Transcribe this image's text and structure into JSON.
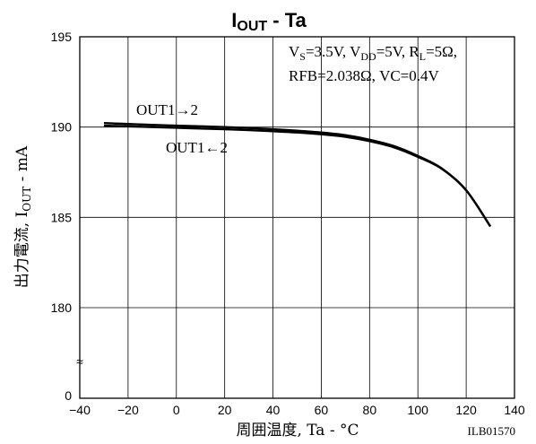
{
  "chart_data": {
    "type": "line",
    "title_main": "I",
    "title_sub": "OUT",
    "title_rest": " - Ta",
    "xlabel": "周囲温度, Ta - °C",
    "ylabel_prefix": "出力電流, I",
    "ylabel_sub": "OUT",
    "ylabel_suffix": " - mA",
    "xlim": [
      -40,
      140
    ],
    "ylim_display": [
      178,
      195
    ],
    "x_ticks": [
      "−40",
      "−20",
      "0",
      "20",
      "40",
      "60",
      "80",
      "100",
      "120",
      "140"
    ],
    "x_tick_values": [
      -40,
      -20,
      0,
      20,
      40,
      60,
      80,
      100,
      120,
      140
    ],
    "y_ticks": [
      "195",
      "190",
      "185",
      "180"
    ],
    "y_tick_values": [
      195,
      190,
      185,
      180
    ],
    "y_zero_label": "0",
    "axis_break": "≈",
    "grid": true,
    "conditions": {
      "line1": [
        {
          "t": "V"
        },
        {
          "t": "S",
          "sub": true
        },
        {
          "t": "=3.5V, V"
        },
        {
          "t": "DD",
          "sub": true
        },
        {
          "t": "=5V, R"
        },
        {
          "t": "L",
          "sub": true
        },
        {
          "t": "=5Ω,"
        }
      ],
      "line2": "RFB=2.038Ω, VC=0.4V"
    },
    "series": [
      {
        "name": "OUT1→2",
        "x": [
          -30,
          -20,
          -10,
          0,
          10,
          20,
          30,
          40,
          50,
          60,
          70,
          80,
          90,
          100,
          110,
          120,
          130
        ],
        "y": [
          190.22,
          190.17,
          190.12,
          190.08,
          190.04,
          190.0,
          189.95,
          189.88,
          189.8,
          189.7,
          189.55,
          189.3,
          188.95,
          188.4,
          187.7,
          186.5,
          184.5
        ]
      },
      {
        "name": "OUT1←2",
        "x": [
          -30,
          -20,
          -10,
          0,
          10,
          20,
          30,
          40,
          50,
          60,
          70,
          80,
          90,
          100,
          110,
          120,
          130
        ],
        "y": [
          190.08,
          190.04,
          190.0,
          189.96,
          189.92,
          189.88,
          189.83,
          189.77,
          189.7,
          189.6,
          189.46,
          189.22,
          188.88,
          188.35,
          187.68,
          186.5,
          184.5
        ]
      }
    ],
    "code": "ILB01570"
  }
}
